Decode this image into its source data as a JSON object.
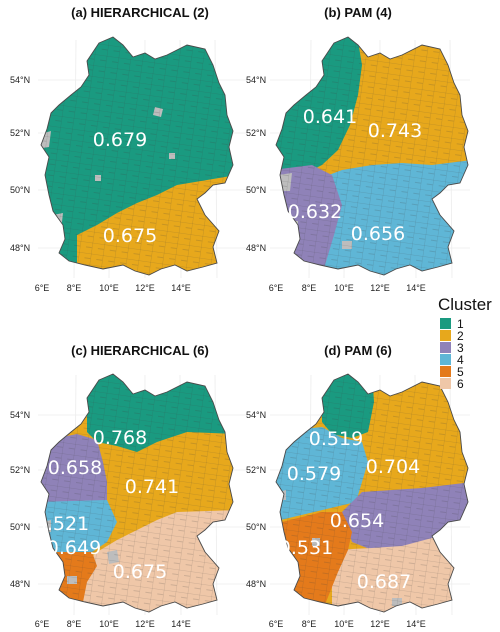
{
  "colors": {
    "1": "#1a9a80",
    "2": "#e7a81c",
    "3": "#8f82b8",
    "4": "#5fb6d6",
    "5": "#e47a1b",
    "6": "#efc7a8",
    "missing": "#bdbdbd",
    "border": "#4a4a4a"
  },
  "axes": {
    "lat_ticks": [
      "54°N",
      "52°N",
      "50°N",
      "48°N"
    ],
    "lon_ticks": [
      "6°E",
      "8°E",
      "10°E",
      "12°E",
      "14°E"
    ]
  },
  "legend": {
    "title": "Cluster",
    "items": [
      {
        "label": "1",
        "color_key": "1"
      },
      {
        "label": "2",
        "color_key": "2"
      },
      {
        "label": "3",
        "color_key": "3"
      },
      {
        "label": "4",
        "color_key": "4"
      },
      {
        "label": "5",
        "color_key": "5"
      },
      {
        "label": "6",
        "color_key": "6"
      }
    ]
  },
  "panels": [
    {
      "title": "(a) HIERARCHICAL (2)",
      "scores": [
        {
          "cluster": "1",
          "value": "0.679"
        },
        {
          "cluster": "2",
          "value": "0.675"
        }
      ]
    },
    {
      "title": "(b) PAM (4)",
      "scores": [
        {
          "cluster": "1",
          "value": "0.641"
        },
        {
          "cluster": "2",
          "value": "0.743"
        },
        {
          "cluster": "3",
          "value": "0.632"
        },
        {
          "cluster": "4",
          "value": "0.656"
        }
      ]
    },
    {
      "title": "(c) HIERARCHICAL (6)",
      "scores": [
        {
          "cluster": "1",
          "value": "0.768"
        },
        {
          "cluster": "3",
          "value": "0.658"
        },
        {
          "cluster": "2",
          "value": "0.741"
        },
        {
          "cluster": "4",
          "value": "0.521"
        },
        {
          "cluster": "5",
          "value": "0.649"
        },
        {
          "cluster": "6",
          "value": "0.675"
        }
      ]
    },
    {
      "title": "(d) PAM (6)",
      "scores": [
        {
          "cluster": "1",
          "value": "0.519"
        },
        {
          "cluster": "4",
          "value": "0.579"
        },
        {
          "cluster": "2",
          "value": "0.704"
        },
        {
          "cluster": "3",
          "value": "0.654"
        },
        {
          "cluster": "5",
          "value": "0.531"
        },
        {
          "cluster": "6",
          "value": "0.687"
        }
      ]
    }
  ]
}
